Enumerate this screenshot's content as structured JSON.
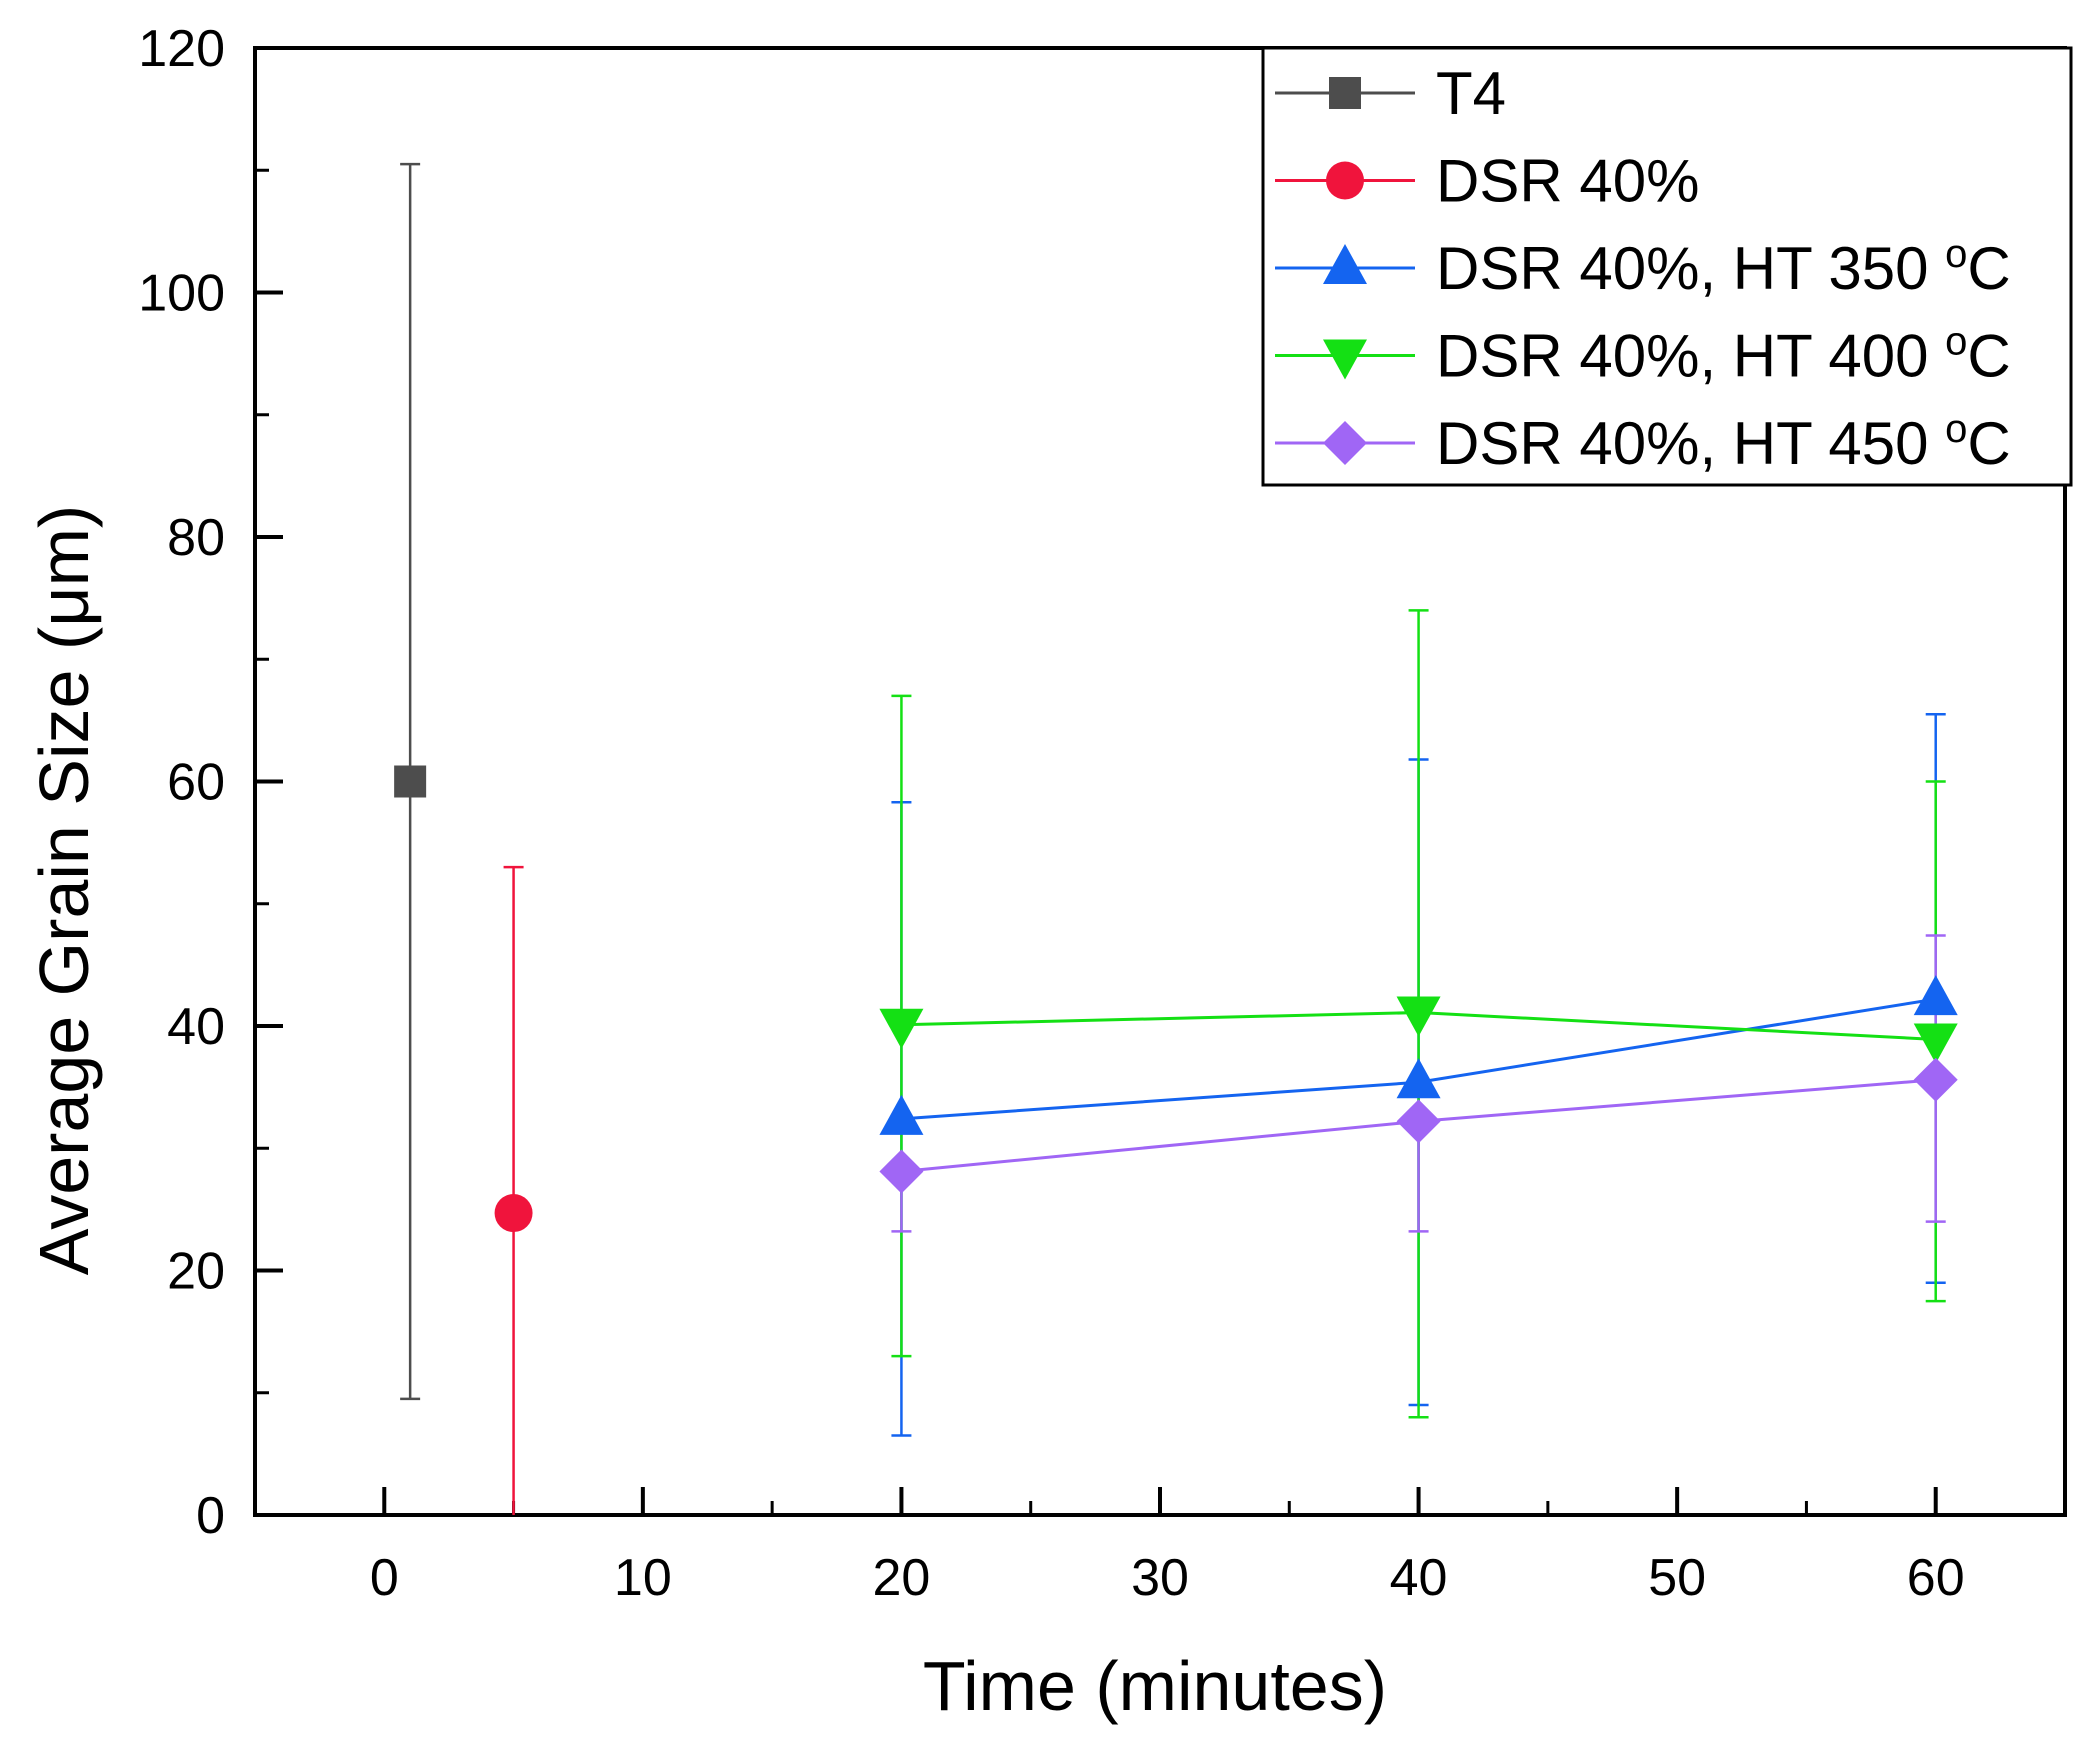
{
  "chart_data": {
    "type": "scatter",
    "xlabel": "Time (minutes)",
    "ylabel_prefix": "Average Grain Size (",
    "ylabel_unit": "μm",
    "ylabel_suffix": ")",
    "xlim": [
      -5,
      65
    ],
    "ylim": [
      0,
      120
    ],
    "xticks": [
      0,
      10,
      20,
      30,
      40,
      50,
      60
    ],
    "yticks": [
      0,
      20,
      40,
      60,
      80,
      100,
      120
    ],
    "x_minor_step": 5,
    "y_minor_step": 10,
    "legend_position": "top-right",
    "series": [
      {
        "name": "T4",
        "color": "#4d4d4d",
        "marker": "square",
        "x": [
          1
        ],
        "y": [
          60
        ],
        "yerr_low": [
          9.5
        ],
        "yerr_high": [
          110.5
        ]
      },
      {
        "name": "DSR 40%",
        "color": "#f0143c",
        "marker": "circle",
        "x": [
          5
        ],
        "y": [
          24.7
        ],
        "yerr_low": [
          0
        ],
        "yerr_high": [
          53
        ]
      },
      {
        "name": "DSR 40%, HT 350 °C",
        "name_main": "DSR 40%, HT 350 ",
        "name_sup": "o",
        "name_end": "C",
        "color": "#1464f0",
        "marker": "triangle-up",
        "x": [
          20,
          40,
          60
        ],
        "y": [
          32.4,
          35.4,
          42.2
        ],
        "yerr_low": [
          6.5,
          9,
          19
        ],
        "yerr_high": [
          58.3,
          61.8,
          65.5
        ]
      },
      {
        "name": "DSR 40%, HT 400 °C",
        "name_main": "DSR 40%, HT 400 ",
        "name_sup": "o",
        "name_end": "C",
        "color": "#14e014",
        "marker": "triangle-down",
        "x": [
          20,
          40,
          60
        ],
        "y": [
          40.1,
          41.1,
          38.9
        ],
        "yerr_low": [
          13,
          8,
          17.5
        ],
        "yerr_high": [
          67,
          74,
          60
        ]
      },
      {
        "name": "DSR 40%, HT 450 °C",
        "name_main": "DSR 40%, HT 450 ",
        "name_sup": "o",
        "name_end": "C",
        "color": "#a066f5",
        "marker": "diamond",
        "x": [
          20,
          40,
          60
        ],
        "y": [
          28.1,
          32.2,
          35.6
        ],
        "yerr_low": [
          23.2,
          23.2,
          24
        ],
        "yerr_high": [
          28.1,
          32.2,
          47.4
        ]
      }
    ]
  }
}
